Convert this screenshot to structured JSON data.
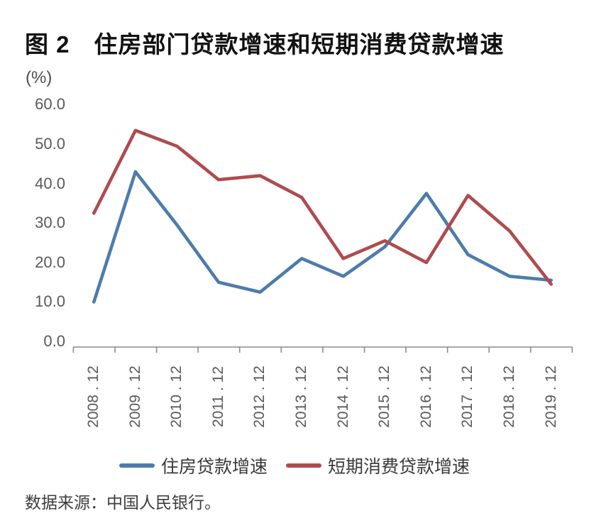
{
  "page": {
    "background": "#ffffff"
  },
  "figure": {
    "title": "图 2　住房部门贷款增速和短期消费贷款增速",
    "unit_label": "(%)",
    "source_note": "数据来源：中国人民银行。"
  },
  "colors": {
    "housing_line": "#4d7cab",
    "short_term_line": "#ae4b4e",
    "axis": "#8c8c8c",
    "tick_text": "#595959"
  },
  "chart_data": {
    "type": "line",
    "title": "住房部门贷款增速和短期消费贷款增速",
    "xlabel": "",
    "ylabel": "(%)",
    "ylim": [
      0,
      60
    ],
    "grid": false,
    "legend_position": "bottom",
    "y_ticks": [
      "60.0",
      "50.0",
      "40.0",
      "30.0",
      "20.0",
      "10.0",
      "0.0"
    ],
    "categories": [
      "2008 . 12",
      "2009 . 12",
      "2010 . 12",
      "2011 . 12",
      "2012 . 12",
      "2013 . 12",
      "2014 . 12",
      "2015 . 12",
      "2016 . 12",
      "2017 . 12",
      "2018 . 12",
      "2019 . 12"
    ],
    "series": [
      {
        "name": "住房贷款增速",
        "color": "#4d7cab",
        "values": [
          10.0,
          43.0,
          29.5,
          15.0,
          12.5,
          21.0,
          16.5,
          24.0,
          37.5,
          22.0,
          16.5,
          15.5
        ]
      },
      {
        "name": "短期消费贷款增速",
        "color": "#ae4b4e",
        "values": [
          32.5,
          53.5,
          49.5,
          41.0,
          42.0,
          36.5,
          21.0,
          25.5,
          20.0,
          37.0,
          28.0,
          14.5
        ]
      }
    ]
  }
}
